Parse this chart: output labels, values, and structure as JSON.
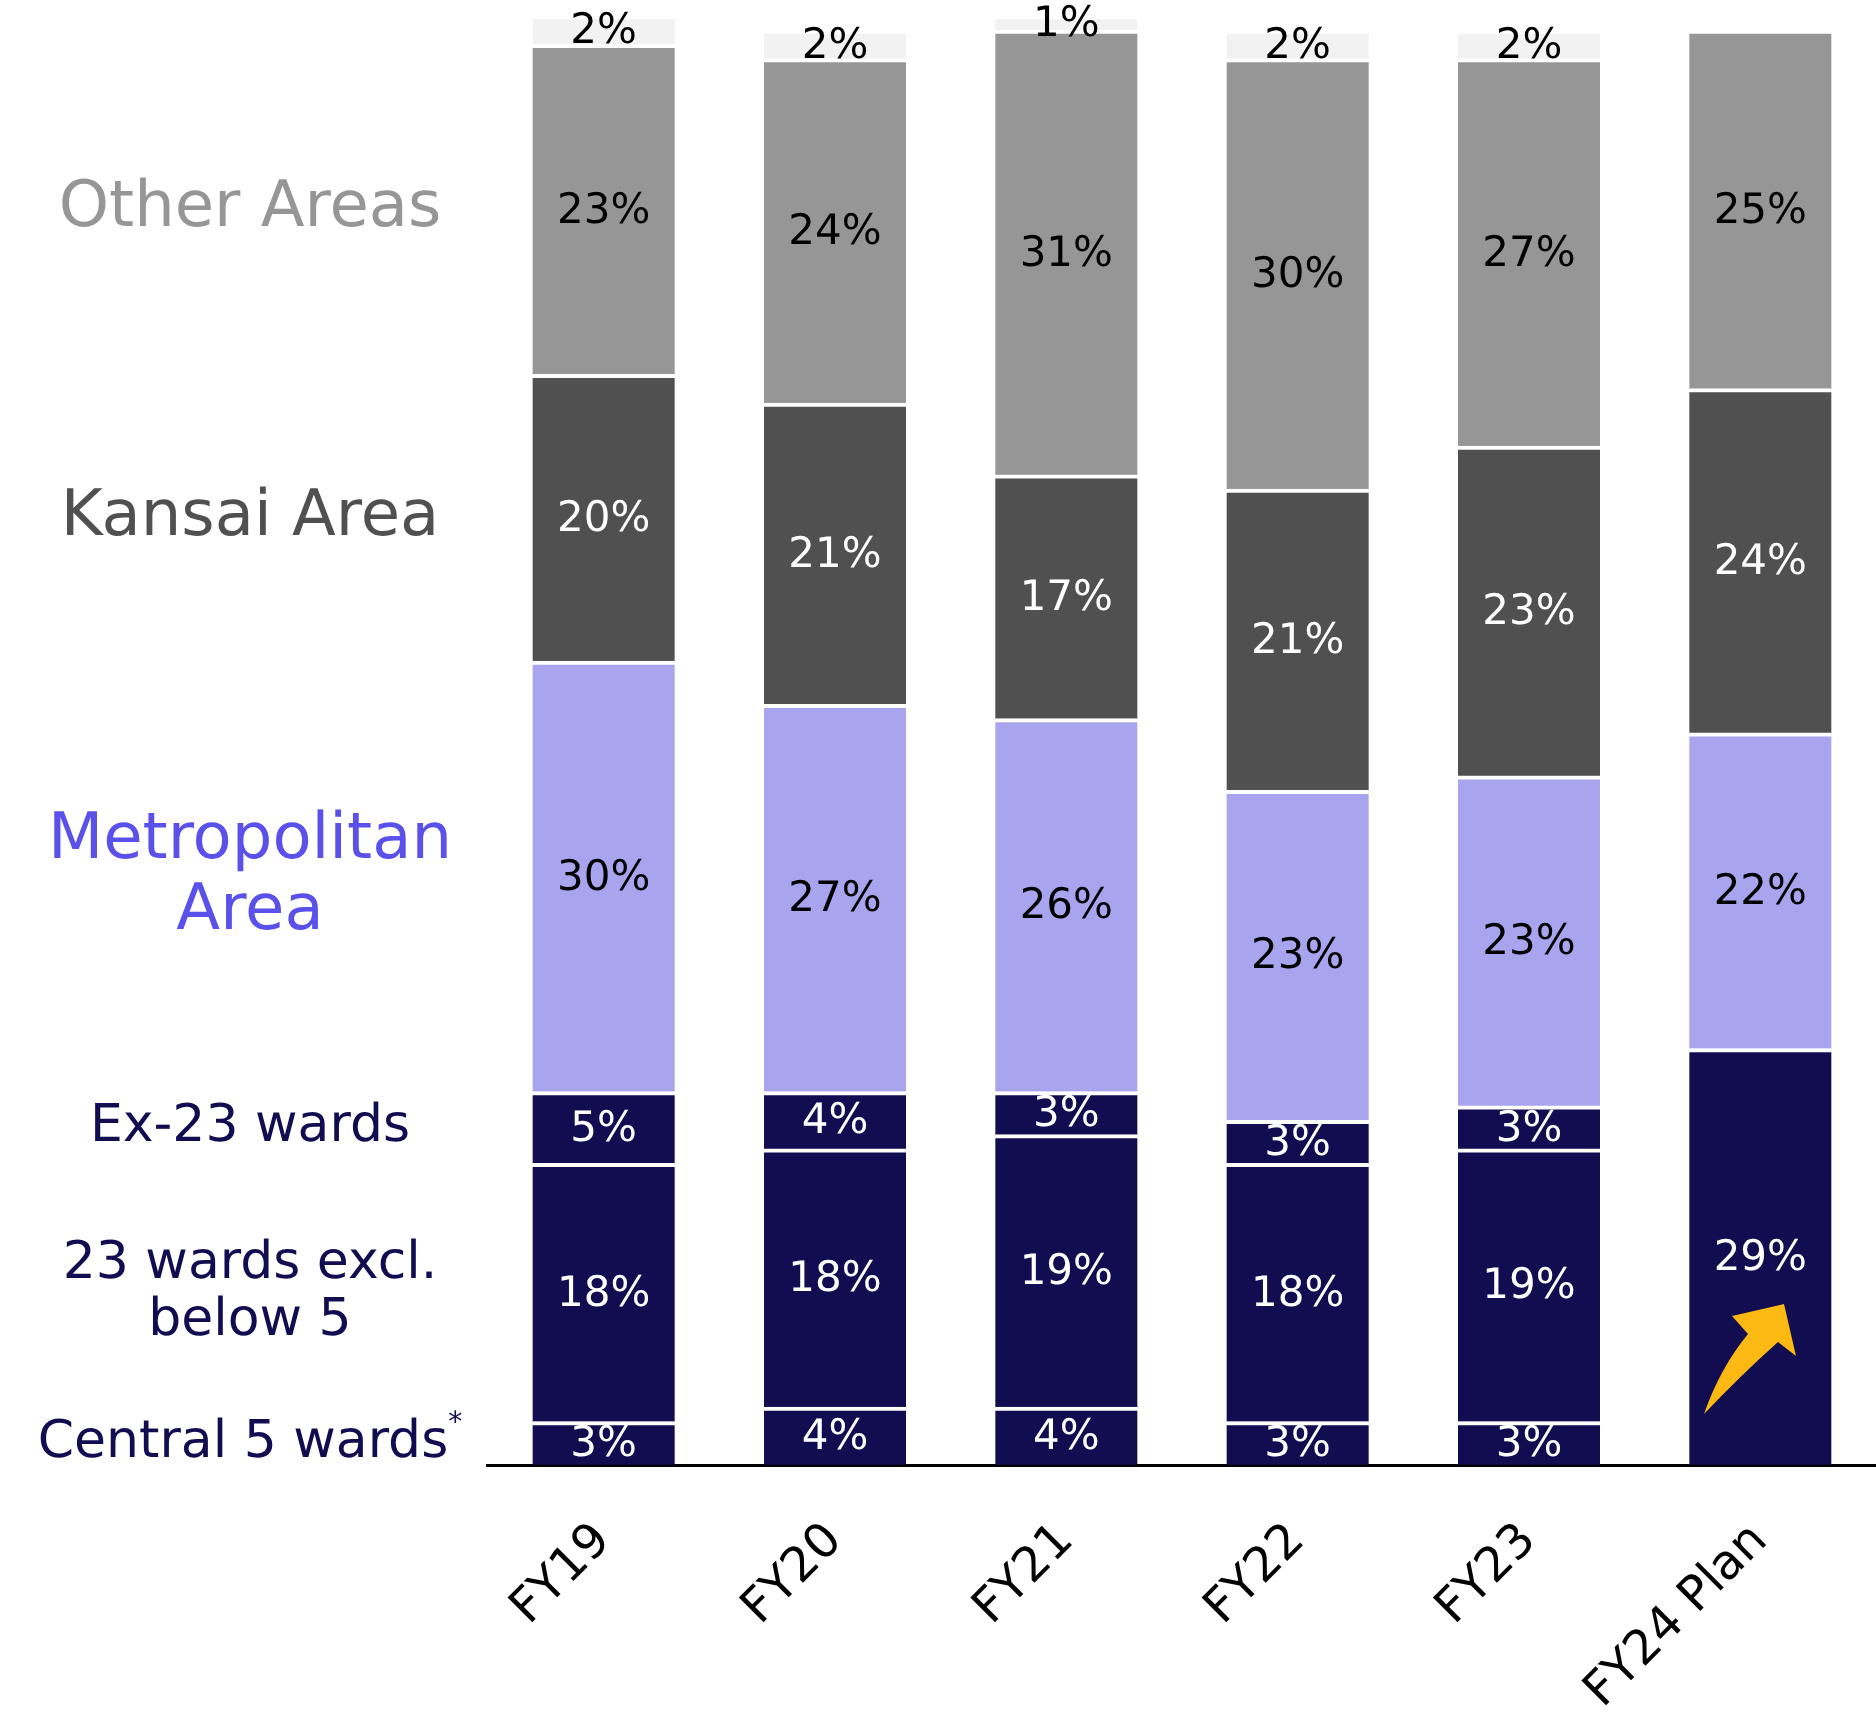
{
  "chart_data": {
    "type": "bar",
    "stacked": true,
    "categories": [
      "FY19",
      "FY20",
      "FY21",
      "FY22",
      "FY23",
      "FY24 Plan"
    ],
    "ylim": [
      0,
      101
    ],
    "series": [
      {
        "name": "Central 5 wards$^{*}$",
        "color": "#110d50",
        "values": [
          3,
          4,
          4,
          3,
          3,
          null
        ],
        "value_labels": [
          "3%",
          "4%",
          "4%",
          "3%",
          "3%",
          null
        ]
      },
      {
        "name": "23 wards excl. below 5",
        "color": "#110d50",
        "values": [
          18,
          18,
          19,
          18,
          19,
          29
        ],
        "value_labels": [
          "18%",
          "18%",
          "19%",
          "18%",
          "19%",
          "29%"
        ]
      },
      {
        "name": "Ex-23 wards",
        "color": "#110d50",
        "values": [
          5,
          4,
          3,
          3,
          3,
          null
        ],
        "value_labels": [
          "5%",
          "4%",
          "3%",
          "3%",
          "3%",
          null
        ]
      },
      {
        "name": "Metropolitan Area",
        "color": "#a8a4ee",
        "values": [
          30,
          27,
          26,
          23,
          23,
          22
        ],
        "value_labels": [
          "30%",
          "27%",
          "26%",
          "23%",
          "23%",
          "22%"
        ]
      },
      {
        "name": "Kansai Area",
        "color": "#505050",
        "values": [
          20,
          21,
          17,
          21,
          23,
          24
        ],
        "value_labels": [
          "20%",
          "21%",
          "17%",
          "21%",
          "23%",
          "24%"
        ]
      },
      {
        "name": "Other Areas",
        "color": "#969696",
        "values": [
          23,
          24,
          31,
          30,
          27,
          25
        ],
        "value_labels": [
          "23%",
          "24%",
          "31%",
          "30%",
          "27%",
          "25%"
        ]
      },
      {
        "color": "#f2f2f2",
        "values": [
          2,
          2,
          1,
          2,
          2,
          null
        ],
        "value_labels": [
          "2%",
          "2%",
          "1%",
          "2%",
          "2%",
          null
        ]
      }
    ]
  }
}
